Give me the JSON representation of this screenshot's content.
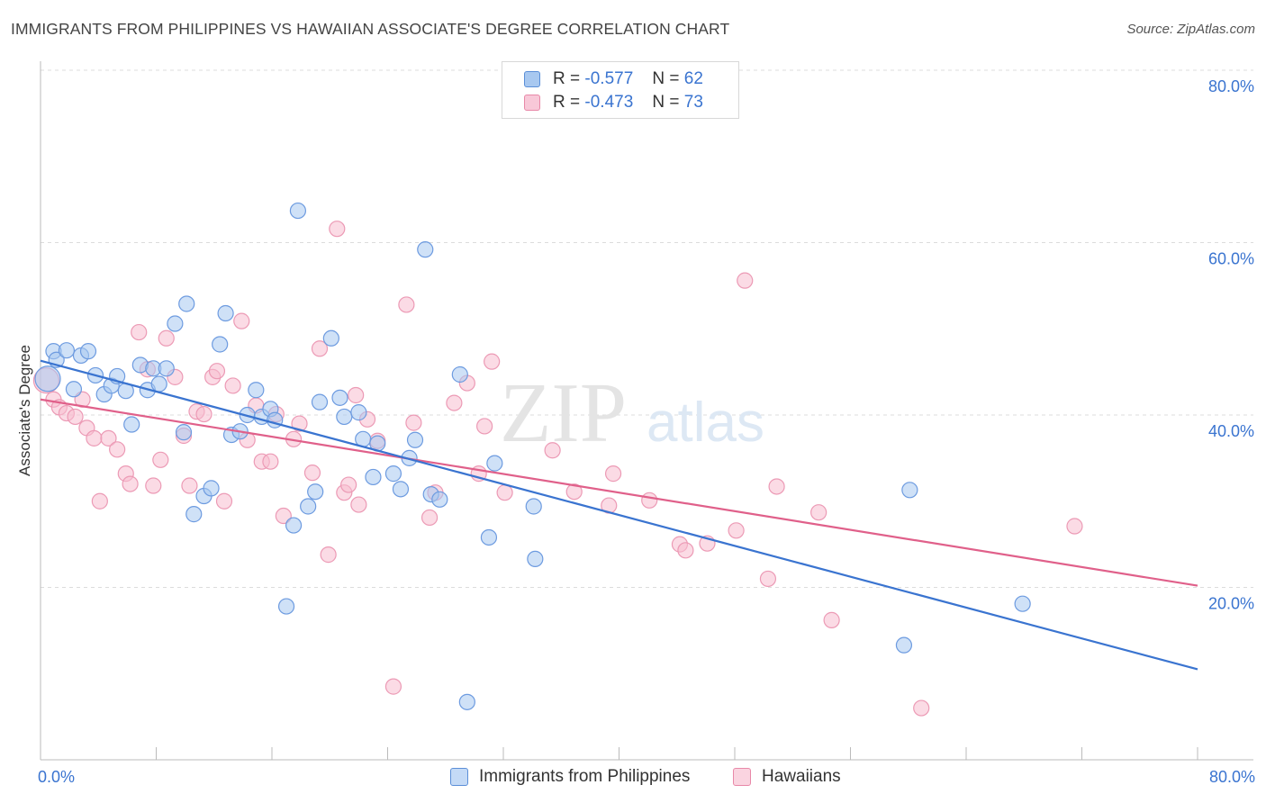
{
  "header": {
    "title": "IMMIGRANTS FROM PHILIPPINES VS HAWAIIAN ASSOCIATE'S DEGREE CORRELATION CHART",
    "source": "Source: ZipAtlas.com"
  },
  "legend": {
    "r_label": "R =",
    "n_label": "N =",
    "rows": [
      {
        "r": "-0.577",
        "n": "62",
        "color": "#a8c8f0",
        "border": "#5b8fd8"
      },
      {
        "r": "-0.473",
        "n": "73",
        "color": "#f8c8d8",
        "border": "#e888a8"
      }
    ]
  },
  "bottom_legend": [
    {
      "label": "Immigrants from Philippines"
    },
    {
      "label": "Hawaiians"
    }
  ],
  "watermark": {
    "zip": "ZIP",
    "atlas": "atlas"
  },
  "colors": {
    "blue": "#3a74d0",
    "pink": "#e0608a",
    "blue_fill": "#a8c8f0",
    "pink_fill": "#f8c8d8",
    "grid": "#dddddd",
    "axis_label": "#3a74d0"
  },
  "chart_data": {
    "type": "scatter",
    "title": "IMMIGRANTS FROM PHILIPPINES VS HAWAIIAN ASSOCIATE'S DEGREE CORRELATION CHART",
    "xlabel": "",
    "ylabel": "Associate's Degree",
    "xlim": [
      0,
      80
    ],
    "ylim": [
      0,
      80
    ],
    "x_tick_labels": [
      "0.0%",
      "80.0%"
    ],
    "y_tick_labels": [
      "20.0%",
      "40.0%",
      "60.0%",
      "80.0%"
    ],
    "y_ticks": [
      20,
      40,
      60,
      80
    ],
    "grid": true,
    "legend_position": "top-center",
    "series": [
      {
        "name": "Immigrants from Philippines",
        "trend": {
          "x0": 0,
          "y0": 46.3,
          "x1": 80,
          "y1": 10.5
        },
        "points": [
          [
            0.5,
            44.2
          ],
          [
            0.9,
            47.4
          ],
          [
            1.1,
            46.4
          ],
          [
            1.8,
            47.5
          ],
          [
            2.3,
            43.0
          ],
          [
            2.8,
            46.9
          ],
          [
            3.3,
            47.4
          ],
          [
            3.8,
            44.6
          ],
          [
            4.4,
            42.4
          ],
          [
            4.9,
            43.4
          ],
          [
            5.3,
            44.5
          ],
          [
            5.9,
            42.8
          ],
          [
            6.3,
            38.9
          ],
          [
            6.9,
            45.8
          ],
          [
            7.4,
            42.9
          ],
          [
            7.8,
            45.4
          ],
          [
            8.2,
            43.6
          ],
          [
            8.7,
            45.4
          ],
          [
            9.3,
            50.6
          ],
          [
            10.1,
            52.9
          ],
          [
            9.9,
            38.0
          ],
          [
            10.6,
            28.5
          ],
          [
            11.3,
            30.6
          ],
          [
            11.8,
            31.5
          ],
          [
            12.4,
            48.2
          ],
          [
            12.8,
            51.8
          ],
          [
            13.2,
            37.7
          ],
          [
            13.8,
            38.1
          ],
          [
            14.3,
            40.0
          ],
          [
            14.9,
            42.9
          ],
          [
            15.3,
            39.8
          ],
          [
            15.9,
            40.7
          ],
          [
            16.2,
            39.4
          ],
          [
            17.0,
            17.8
          ],
          [
            17.5,
            27.2
          ],
          [
            17.8,
            63.7
          ],
          [
            18.5,
            29.4
          ],
          [
            19.0,
            31.1
          ],
          [
            19.3,
            41.5
          ],
          [
            20.1,
            48.9
          ],
          [
            20.7,
            42.0
          ],
          [
            21.0,
            39.8
          ],
          [
            22.0,
            40.3
          ],
          [
            22.3,
            37.2
          ],
          [
            23.0,
            32.8
          ],
          [
            23.3,
            36.7
          ],
          [
            24.4,
            33.2
          ],
          [
            24.9,
            31.4
          ],
          [
            25.5,
            35.0
          ],
          [
            25.9,
            37.1
          ],
          [
            26.6,
            59.2
          ],
          [
            27.0,
            30.8
          ],
          [
            27.6,
            30.2
          ],
          [
            29.0,
            44.7
          ],
          [
            29.5,
            6.7
          ],
          [
            31.0,
            25.8
          ],
          [
            31.4,
            34.4
          ],
          [
            34.1,
            29.4
          ],
          [
            34.2,
            23.3
          ],
          [
            59.7,
            13.3
          ],
          [
            60.1,
            31.3
          ],
          [
            67.9,
            18.1
          ]
        ]
      },
      {
        "name": "Hawaiians",
        "trend": {
          "x0": 0,
          "y0": 41.8,
          "x1": 80,
          "y1": 20.2
        },
        "points": [
          [
            0.4,
            44.0
          ],
          [
            0.9,
            41.8
          ],
          [
            1.3,
            40.9
          ],
          [
            1.8,
            40.2
          ],
          [
            2.4,
            39.8
          ],
          [
            2.9,
            41.8
          ],
          [
            3.2,
            38.5
          ],
          [
            3.7,
            37.3
          ],
          [
            4.1,
            30.0
          ],
          [
            4.7,
            37.3
          ],
          [
            5.3,
            36.0
          ],
          [
            5.9,
            33.2
          ],
          [
            6.2,
            32.0
          ],
          [
            6.8,
            49.6
          ],
          [
            7.4,
            45.3
          ],
          [
            7.8,
            31.8
          ],
          [
            8.3,
            34.8
          ],
          [
            8.7,
            48.9
          ],
          [
            9.3,
            44.4
          ],
          [
            9.9,
            37.6
          ],
          [
            10.3,
            31.8
          ],
          [
            10.8,
            40.4
          ],
          [
            11.3,
            40.1
          ],
          [
            11.9,
            44.4
          ],
          [
            12.2,
            45.1
          ],
          [
            12.7,
            30.0
          ],
          [
            13.3,
            43.4
          ],
          [
            13.9,
            50.9
          ],
          [
            14.3,
            37.1
          ],
          [
            14.9,
            41.1
          ],
          [
            15.3,
            34.6
          ],
          [
            15.9,
            34.6
          ],
          [
            16.3,
            40.1
          ],
          [
            16.8,
            28.3
          ],
          [
            17.5,
            37.2
          ],
          [
            17.9,
            39.0
          ],
          [
            18.8,
            33.3
          ],
          [
            19.3,
            47.7
          ],
          [
            19.9,
            23.8
          ],
          [
            20.5,
            61.6
          ],
          [
            21.0,
            31.0
          ],
          [
            21.3,
            31.9
          ],
          [
            21.8,
            42.3
          ],
          [
            22.0,
            29.6
          ],
          [
            22.6,
            39.5
          ],
          [
            23.3,
            37.0
          ],
          [
            24.4,
            8.5
          ],
          [
            25.3,
            52.8
          ],
          [
            25.8,
            39.1
          ],
          [
            26.9,
            28.1
          ],
          [
            27.3,
            31.0
          ],
          [
            28.6,
            41.4
          ],
          [
            29.5,
            43.7
          ],
          [
            30.3,
            33.2
          ],
          [
            30.7,
            38.7
          ],
          [
            31.2,
            46.2
          ],
          [
            32.1,
            31.0
          ],
          [
            35.4,
            35.9
          ],
          [
            36.9,
            31.1
          ],
          [
            39.3,
            29.5
          ],
          [
            39.6,
            33.2
          ],
          [
            42.1,
            30.1
          ],
          [
            44.2,
            25.0
          ],
          [
            44.6,
            24.3
          ],
          [
            46.1,
            25.1
          ],
          [
            48.1,
            26.6
          ],
          [
            48.7,
            55.6
          ],
          [
            50.3,
            21.0
          ],
          [
            50.9,
            31.7
          ],
          [
            53.8,
            28.7
          ],
          [
            54.7,
            16.2
          ],
          [
            60.9,
            6.0
          ],
          [
            71.5,
            27.1
          ]
        ]
      }
    ]
  }
}
